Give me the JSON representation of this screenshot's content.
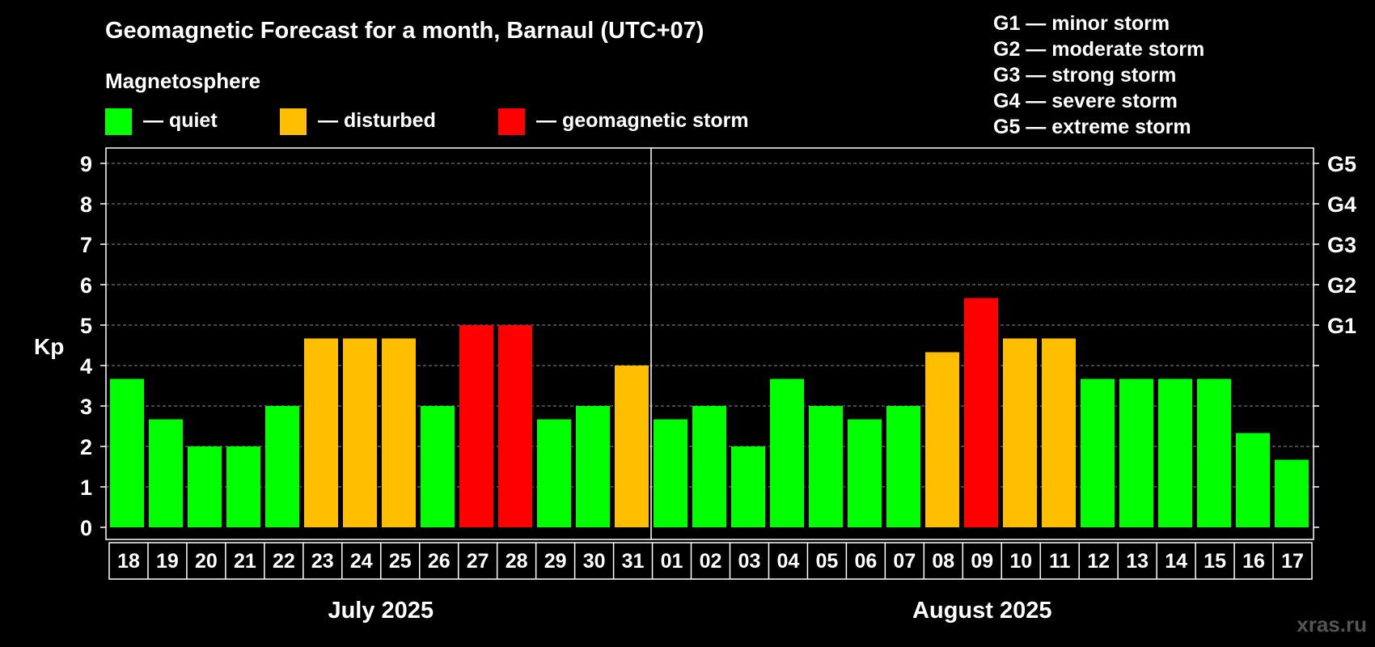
{
  "chart_data": {
    "type": "bar",
    "title": "Geomagnetic Forecast for a month, Barnaul (UTC+07)",
    "legend_title": "Magnetosphere",
    "legend": [
      {
        "label": "— quiet",
        "color": "#00ff00"
      },
      {
        "label": "— disturbed",
        "color": "#ffbf00"
      },
      {
        "label": "— geomagnetic storm",
        "color": "#ff0000"
      }
    ],
    "storm_scale": [
      "G1 — minor storm",
      "G2 — moderate storm",
      "G3 — strong storm",
      "G4 — severe storm",
      "G5 — extreme storm"
    ],
    "ylabel": "Kp",
    "ylim": [
      0,
      9
    ],
    "yticks": [
      "0",
      "1",
      "2",
      "3",
      "4",
      "5",
      "6",
      "7",
      "8",
      "9"
    ],
    "right_axis_labels": [
      {
        "value": 5,
        "label": "G1"
      },
      {
        "value": 6,
        "label": "G2"
      },
      {
        "value": 7,
        "label": "G3"
      },
      {
        "value": 8,
        "label": "G4"
      },
      {
        "value": 9,
        "label": "G5"
      }
    ],
    "categories": [
      "18",
      "19",
      "20",
      "21",
      "22",
      "23",
      "24",
      "25",
      "26",
      "27",
      "28",
      "29",
      "30",
      "31",
      "01",
      "02",
      "03",
      "04",
      "05",
      "06",
      "07",
      "08",
      "09",
      "10",
      "11",
      "12",
      "13",
      "14",
      "15",
      "16",
      "17"
    ],
    "values": [
      3.67,
      2.67,
      2.0,
      2.0,
      3.0,
      4.67,
      4.67,
      4.67,
      3.0,
      5.0,
      5.0,
      2.67,
      3.0,
      4.0,
      2.67,
      3.0,
      2.0,
      3.67,
      3.0,
      2.67,
      3.0,
      4.33,
      5.67,
      4.67,
      4.67,
      3.67,
      3.67,
      3.67,
      3.67,
      2.33,
      1.67
    ],
    "status": [
      "quiet",
      "quiet",
      "quiet",
      "quiet",
      "quiet",
      "disturbed",
      "disturbed",
      "disturbed",
      "quiet",
      "storm",
      "storm",
      "quiet",
      "quiet",
      "disturbed",
      "quiet",
      "quiet",
      "quiet",
      "quiet",
      "quiet",
      "quiet",
      "quiet",
      "disturbed",
      "storm",
      "disturbed",
      "disturbed",
      "quiet",
      "quiet",
      "quiet",
      "quiet",
      "quiet",
      "quiet"
    ],
    "status_colors": {
      "quiet": "#00ff00",
      "disturbed": "#ffbf00",
      "storm": "#ff0000"
    },
    "months": [
      {
        "label": "July 2025",
        "days": 14
      },
      {
        "label": "August 2025",
        "days": 17
      }
    ],
    "grid": true
  },
  "footer": {
    "watermark": "xras.ru"
  }
}
